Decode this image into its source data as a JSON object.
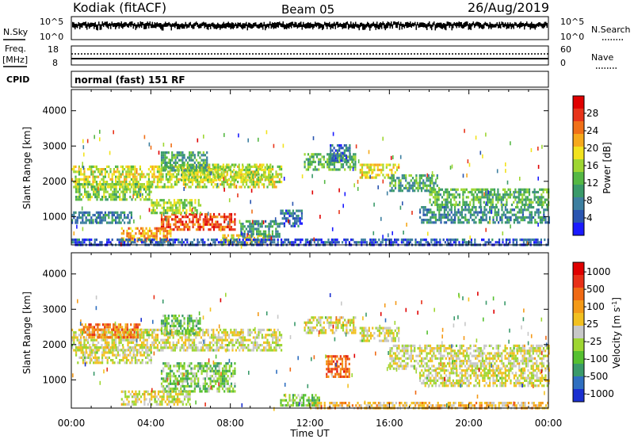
{
  "header": {
    "station": "Kodiak (fitACF)",
    "beam": "Beam 05",
    "date": "26/Aug/2019"
  },
  "top_panels": {
    "nsky_label": "N.Sky",
    "nsky_ticks": [
      "10^5",
      "10^0"
    ],
    "nsearch_label": "N.Search",
    "nsearch_ticks": [
      "10^5",
      "10^0"
    ],
    "freq_label_line1": "Freq.",
    "freq_label_line2": "[MHz]",
    "freq_ticks": [
      "18",
      "8"
    ],
    "nave_label": "Nave",
    "nave_ticks": [
      "60",
      "0"
    ],
    "cpid_label": "CPID",
    "cpid_text": "normal (fast) 151 RF"
  },
  "chart_data": [
    {
      "type": "heatmap",
      "name": "power",
      "ylabel": "Slant Range [km]",
      "ylim": [
        200,
        4600
      ],
      "yticks": [
        1000,
        2000,
        3000,
        4000
      ],
      "xlim": [
        0,
        24
      ],
      "xticks": [
        0,
        4,
        8,
        12,
        16,
        20,
        24
      ],
      "colorbar": {
        "label": "Power [dB]",
        "range": [
          0,
          32
        ],
        "ticks": [
          "4",
          "8",
          "12",
          "16",
          "20",
          "24",
          "28"
        ],
        "colors": [
          "#1a1aff",
          "#2a55b0",
          "#3d7fa0",
          "#3a9a6a",
          "#55b844",
          "#9ed632",
          "#f2e21e",
          "#f6a91c",
          "#f07018",
          "#e8341a",
          "#e00000"
        ]
      },
      "regions": [
        {
          "t0": 0.0,
          "t1": 10.6,
          "r0": 1850,
          "r1": 2450,
          "level": 0.55
        },
        {
          "t0": 0.2,
          "t1": 4.0,
          "r0": 1500,
          "r1": 1950,
          "level": 0.45
        },
        {
          "t0": 5.5,
          "t1": 10.0,
          "r0": 2050,
          "r1": 2500,
          "level": 0.5
        },
        {
          "t0": 4.5,
          "t1": 6.8,
          "r0": 2300,
          "r1": 2850,
          "level": 0.35
        },
        {
          "t0": 4.5,
          "t1": 8.2,
          "r0": 600,
          "r1": 1100,
          "level": 0.82
        },
        {
          "t0": 4.0,
          "t1": 6.5,
          "r0": 1100,
          "r1": 1500,
          "level": 0.5
        },
        {
          "t0": 2.5,
          "t1": 5.0,
          "r0": 300,
          "r1": 700,
          "level": 0.7
        },
        {
          "t0": 0.0,
          "t1": 3.0,
          "r0": 850,
          "r1": 1150,
          "level": 0.25
        },
        {
          "t0": 7.5,
          "t1": 10.0,
          "r0": 250,
          "r1": 500,
          "level": 0.6
        },
        {
          "t0": 8.5,
          "t1": 10.5,
          "r0": 400,
          "r1": 900,
          "level": 0.3
        },
        {
          "t0": 10.5,
          "t1": 11.6,
          "r0": 700,
          "r1": 1200,
          "level": 0.2
        },
        {
          "t0": 11.7,
          "t1": 14.3,
          "r0": 2300,
          "r1": 2800,
          "level": 0.4
        },
        {
          "t0": 13.0,
          "t1": 14.0,
          "r0": 2600,
          "r1": 3050,
          "level": 0.2
        },
        {
          "t0": 14.5,
          "t1": 16.5,
          "r0": 2100,
          "r1": 2500,
          "level": 0.6
        },
        {
          "t0": 16.0,
          "t1": 18.5,
          "r0": 1700,
          "r1": 2200,
          "level": 0.35
        },
        {
          "t0": 18.0,
          "t1": 24.0,
          "r0": 1350,
          "r1": 1800,
          "level": 0.4
        },
        {
          "t0": 17.5,
          "t1": 24.0,
          "r0": 850,
          "r1": 1300,
          "level": 0.28
        },
        {
          "t0": 0.0,
          "t1": 24.0,
          "r0": 200,
          "r1": 380,
          "level": 0.15
        }
      ]
    },
    {
      "type": "heatmap",
      "name": "velocity",
      "ylabel": "Slant Range [km]",
      "ylim": [
        200,
        4600
      ],
      "yticks": [
        1000,
        2000,
        3000,
        4000
      ],
      "xlim": [
        0,
        24
      ],
      "xticks": [
        0,
        4,
        8,
        12,
        16,
        20,
        24
      ],
      "xlabel": "Time UT",
      "xtick_labels": [
        "00:00",
        "04:00",
        "08:00",
        "12:00",
        "16:00",
        "20:00",
        "00:00"
      ],
      "colorbar": {
        "label": "Velocity [m s",
        "label_sup": "-1",
        "label_end": "]",
        "ticks": [
          "1000",
          "500",
          "100",
          "25",
          "-25",
          "-100",
          "-500",
          "-1000"
        ],
        "colors": [
          "#1a2fd0",
          "#2f6fc0",
          "#3a9a6a",
          "#55c030",
          "#9ed632",
          "#c8c8c8",
          "#f2c020",
          "#f49a18",
          "#f06a14",
          "#e83018",
          "#e00000"
        ]
      },
      "regions": [
        {
          "t0": 0.0,
          "t1": 10.6,
          "r0": 1850,
          "r1": 2450,
          "level": 0.5
        },
        {
          "t0": 0.2,
          "t1": 4.0,
          "r0": 1500,
          "r1": 1950,
          "level": 0.5
        },
        {
          "t0": 0.5,
          "t1": 3.5,
          "r0": 2200,
          "r1": 2600,
          "level": 0.72
        },
        {
          "t0": 4.5,
          "t1": 6.5,
          "r0": 2300,
          "r1": 2850,
          "level": 0.34
        },
        {
          "t0": 4.5,
          "t1": 8.2,
          "r0": 700,
          "r1": 1500,
          "level": 0.36
        },
        {
          "t0": 2.5,
          "t1": 6.0,
          "r0": 300,
          "r1": 700,
          "level": 0.5
        },
        {
          "t0": 11.7,
          "t1": 14.3,
          "r0": 2300,
          "r1": 2800,
          "level": 0.5
        },
        {
          "t0": 12.8,
          "t1": 14.0,
          "r0": 1100,
          "r1": 1700,
          "level": 0.78
        },
        {
          "t0": 14.5,
          "t1": 16.5,
          "r0": 2100,
          "r1": 2500,
          "level": 0.5
        },
        {
          "t0": 16.0,
          "t1": 24.0,
          "r0": 1350,
          "r1": 2000,
          "level": 0.5
        },
        {
          "t0": 17.5,
          "t1": 24.0,
          "r0": 850,
          "r1": 1300,
          "level": 0.5
        },
        {
          "t0": 10.5,
          "t1": 12.5,
          "r0": 250,
          "r1": 600,
          "level": 0.38
        },
        {
          "t0": 12.0,
          "t1": 24.0,
          "r0": 200,
          "r1": 380,
          "level": 0.62
        }
      ]
    }
  ]
}
